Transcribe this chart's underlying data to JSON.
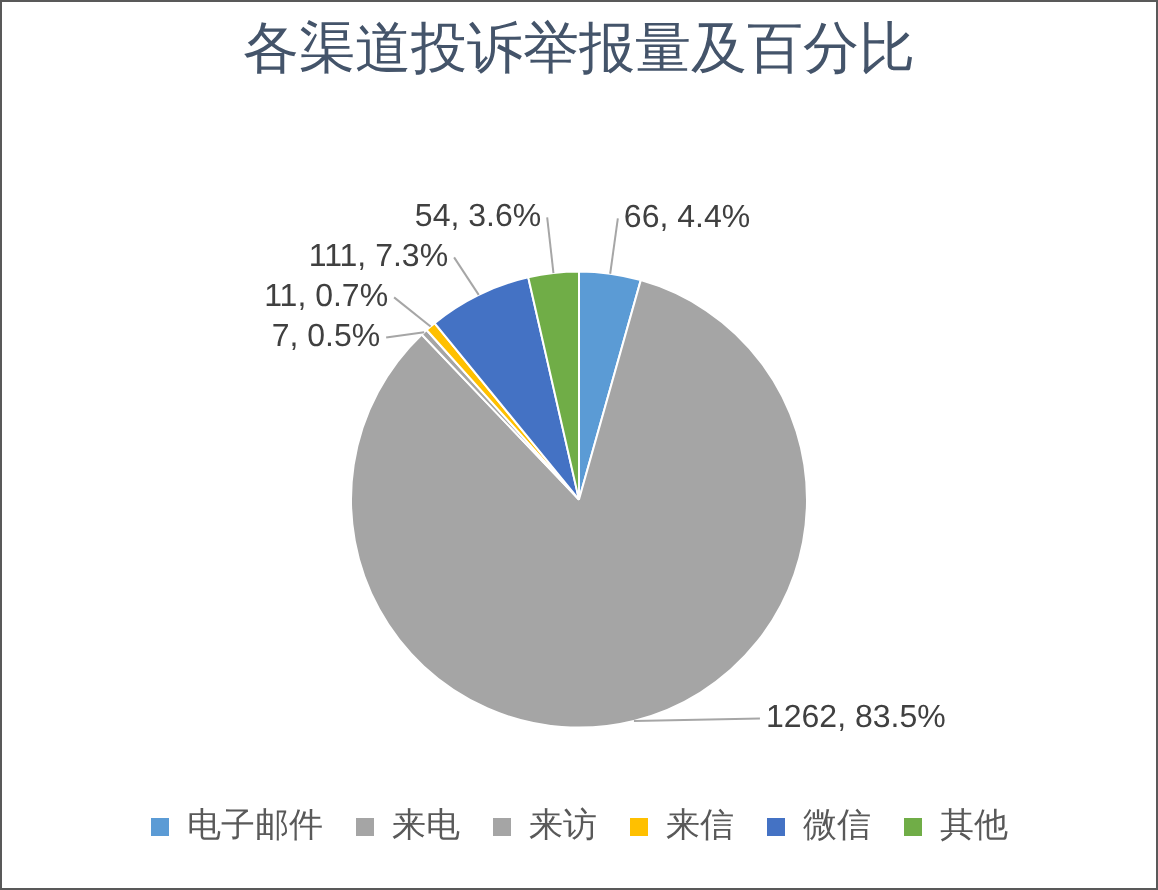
{
  "chart_data": {
    "type": "pie",
    "title": "各渠道投诉举报量及百分比",
    "categories": [
      "电子邮件",
      "来电",
      "来访",
      "来信",
      "微信",
      "其他"
    ],
    "values": [
      66,
      1262,
      7,
      11,
      111,
      54
    ],
    "colors": [
      "#5b9bd5",
      "#a5a5a5",
      "#a5a5a5",
      "#ffc000",
      "#4472c4",
      "#70ad47"
    ],
    "value_labels": [
      "66, 4.4%",
      "1262, 83.5%",
      "7, 0.5%",
      "11, 0.7%",
      "111, 7.3%",
      "54, 3.6%"
    ],
    "legend": "bottom"
  }
}
